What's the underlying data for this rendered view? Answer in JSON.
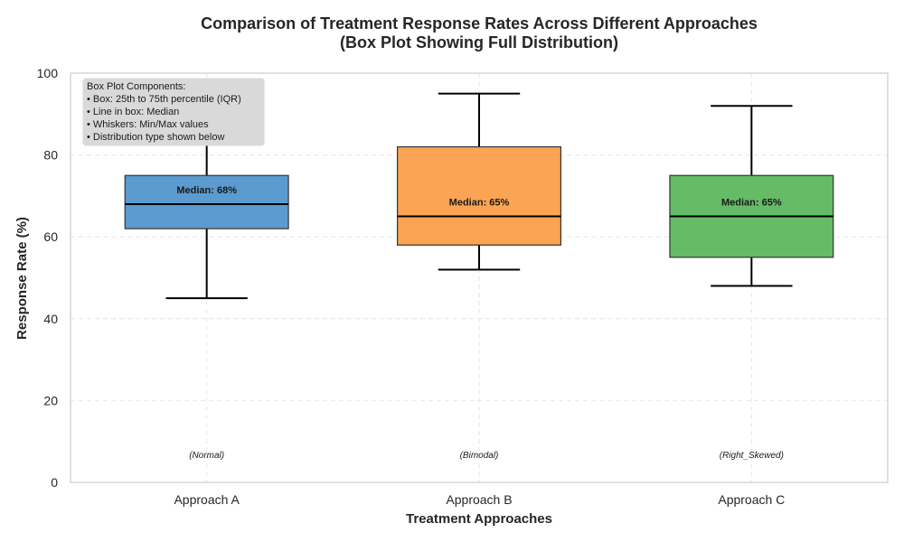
{
  "chart_data": {
    "type": "box",
    "title_line1": "Comparison of Treatment Response Rates Across Different Approaches",
    "title_line2": "(Box Plot Showing Full Distribution)",
    "xlabel": "Treatment Approaches",
    "ylabel": "Response Rate (%)",
    "ylim": [
      0,
      100
    ],
    "yticks": [
      0,
      20,
      40,
      60,
      80,
      100
    ],
    "grid": true,
    "categories": [
      "Approach A",
      "Approach B",
      "Approach C"
    ],
    "boxes": [
      {
        "category": "Approach A",
        "min": 45,
        "q1": 62,
        "median": 68,
        "q3": 75,
        "max": 88,
        "color": "#5b9bcf",
        "median_label": "Median: 68%",
        "distribution": "(Normal)"
      },
      {
        "category": "Approach B",
        "min": 52,
        "q1": 58,
        "median": 65,
        "q3": 82,
        "max": 95,
        "color": "#fca453",
        "median_label": "Median: 65%",
        "distribution": "(Bimodal)"
      },
      {
        "category": "Approach C",
        "min": 48,
        "q1": 55,
        "median": 65,
        "q3": 75,
        "max": 92,
        "color": "#66bb66",
        "median_label": "Median: 65%",
        "distribution": "(Right_Skewed)"
      }
    ],
    "legend": {
      "placement": "top-left",
      "lines": [
        "Box Plot Components:",
        "• Box: 25th to 75th percentile (IQR)",
        "• Line in box: Median",
        "• Whiskers: Min/Max values",
        "• Distribution type shown below"
      ]
    }
  }
}
